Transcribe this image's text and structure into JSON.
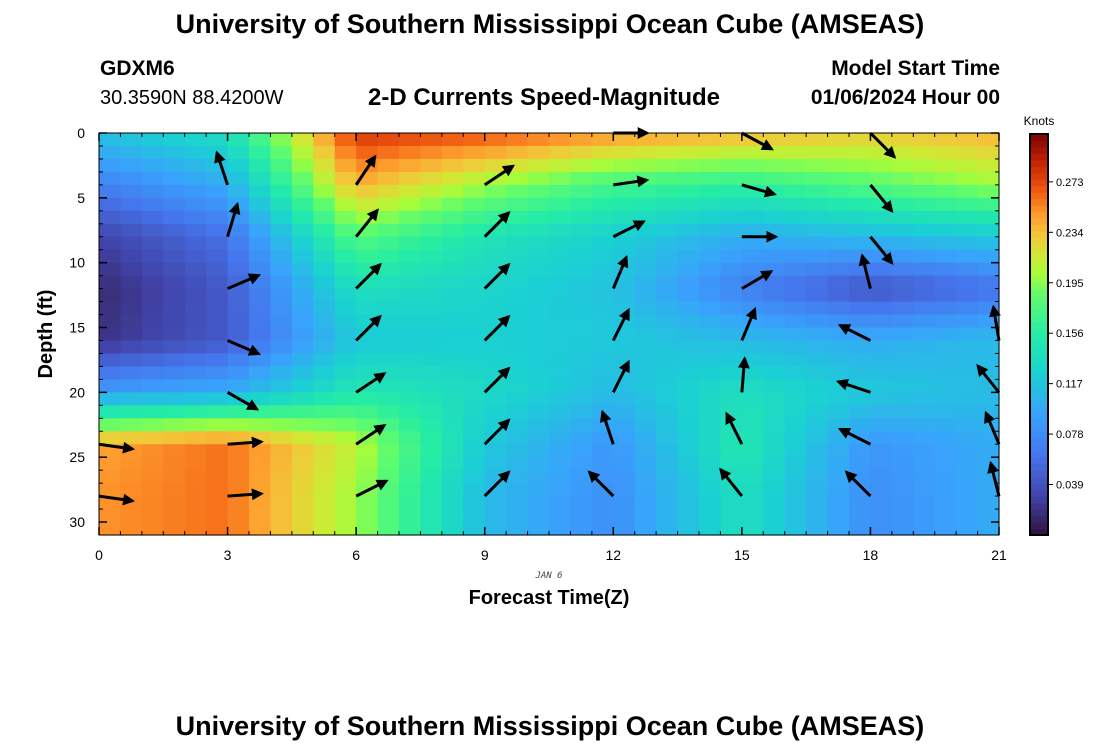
{
  "header": {
    "title": "University of Southern Mississippi Ocean Cube (AMSEAS)",
    "station": "GDXM6",
    "coords": "30.3590N  88.4200W",
    "subtitle": "2-D Currents Speed-Magnitude",
    "model_start_label": "Model Start Time",
    "model_start_value": "01/06/2024 Hour 00"
  },
  "footer": {
    "title": "University of Southern Mississippi Ocean Cube (AMSEAS)"
  },
  "chart_data": {
    "type": "heatmap",
    "title": "2-D Currents Speed-Magnitude",
    "xlabel": "Forecast Time(Z)",
    "ylabel": "Depth (ft)",
    "date_label": "JAN 6",
    "xlim": [
      0,
      21
    ],
    "ylim": [
      0,
      31
    ],
    "x_ticks": [
      0,
      3,
      6,
      9,
      12,
      15,
      18,
      21
    ],
    "y_ticks": [
      0,
      5,
      10,
      15,
      20,
      25,
      30
    ],
    "colorbar": {
      "label": "Knots",
      "ticks": [
        0.039,
        0.078,
        0.117,
        0.156,
        0.195,
        0.234,
        0.273
      ],
      "range": [
        0.0,
        0.31
      ]
    },
    "speed_grid": {
      "hours": [
        0,
        3,
        6,
        9,
        12,
        15,
        18,
        21
      ],
      "depths_ft": [
        0,
        4,
        8,
        12,
        16,
        20,
        24,
        28
      ],
      "values": [
        [
          0.115,
          0.14,
          0.28,
          0.27,
          0.25,
          0.24,
          0.23,
          0.24
        ],
        [
          0.07,
          0.1,
          0.24,
          0.2,
          0.17,
          0.16,
          0.18,
          0.2
        ],
        [
          0.03,
          0.06,
          0.18,
          0.145,
          0.125,
          0.1,
          0.11,
          0.12
        ],
        [
          0.015,
          0.045,
          0.14,
          0.13,
          0.115,
          0.07,
          0.04,
          0.06
        ],
        [
          0.02,
          0.045,
          0.12,
          0.125,
          0.12,
          0.11,
          0.1,
          0.11
        ],
        [
          0.09,
          0.1,
          0.15,
          0.135,
          0.11,
          0.14,
          0.12,
          0.11
        ],
        [
          0.245,
          0.26,
          0.21,
          0.12,
          0.085,
          0.15,
          0.085,
          0.1
        ],
        [
          0.25,
          0.26,
          0.2,
          0.11,
          0.08,
          0.14,
          0.08,
          0.1
        ]
      ]
    },
    "vectors": [
      {
        "t": 0,
        "d": 24,
        "u": 0.7,
        "v": -0.1
      },
      {
        "t": 0,
        "d": 28,
        "u": 0.7,
        "v": -0.1
      },
      {
        "t": 3,
        "d": 4,
        "u": -0.2,
        "v": 0.6
      },
      {
        "t": 3,
        "d": 8,
        "u": 0.15,
        "v": 0.5
      },
      {
        "t": 3,
        "d": 12,
        "u": 0.7,
        "v": 0.3
      },
      {
        "t": 3,
        "d": 16,
        "u": 0.7,
        "v": -0.3
      },
      {
        "t": 3,
        "d": 20,
        "u": 0.7,
        "v": -0.4
      },
      {
        "t": 3,
        "d": 24,
        "u": 0.7,
        "v": 0.05
      },
      {
        "t": 3,
        "d": 28,
        "u": 0.7,
        "v": 0.05
      },
      {
        "t": 6,
        "d": 4,
        "u": 0.4,
        "v": 0.6
      },
      {
        "t": 6,
        "d": 8,
        "u": 0.4,
        "v": 0.5
      },
      {
        "t": 6,
        "d": 12,
        "u": 0.5,
        "v": 0.5
      },
      {
        "t": 6,
        "d": 16,
        "u": 0.5,
        "v": 0.5
      },
      {
        "t": 6,
        "d": 20,
        "u": 0.6,
        "v": 0.4
      },
      {
        "t": 6,
        "d": 24,
        "u": 0.6,
        "v": 0.4
      },
      {
        "t": 6,
        "d": 28,
        "u": 0.6,
        "v": 0.3
      },
      {
        "t": 9,
        "d": 4,
        "u": 0.6,
        "v": 0.4
      },
      {
        "t": 9,
        "d": 8,
        "u": 0.5,
        "v": 0.5
      },
      {
        "t": 9,
        "d": 12,
        "u": 0.5,
        "v": 0.5
      },
      {
        "t": 9,
        "d": 16,
        "u": 0.5,
        "v": 0.5
      },
      {
        "t": 9,
        "d": 20,
        "u": 0.5,
        "v": 0.5
      },
      {
        "t": 9,
        "d": 24,
        "u": 0.5,
        "v": 0.5
      },
      {
        "t": 9,
        "d": 28,
        "u": 0.5,
        "v": 0.5
      },
      {
        "t": 12,
        "d": 0,
        "u": 0.7,
        "v": 0.0
      },
      {
        "t": 12,
        "d": 4,
        "u": 0.7,
        "v": 0.1
      },
      {
        "t": 12,
        "d": 8,
        "u": 0.6,
        "v": 0.3
      },
      {
        "t": 12,
        "d": 12,
        "u": 0.25,
        "v": 0.6
      },
      {
        "t": 12,
        "d": 16,
        "u": 0.3,
        "v": 0.6
      },
      {
        "t": 12,
        "d": 20,
        "u": 0.3,
        "v": 0.6
      },
      {
        "t": 12,
        "d": 24,
        "u": -0.2,
        "v": 0.6
      },
      {
        "t": 12,
        "d": 28,
        "u": -0.5,
        "v": 0.5
      },
      {
        "t": 15,
        "d": 0,
        "u": 0.65,
        "v": -0.35
      },
      {
        "t": 15,
        "d": 4,
        "u": 0.7,
        "v": -0.2
      },
      {
        "t": 15,
        "d": 8,
        "u": 0.7,
        "v": 0.0
      },
      {
        "t": 15,
        "d": 12,
        "u": 0.6,
        "v": 0.35
      },
      {
        "t": 15,
        "d": 16,
        "u": 0.25,
        "v": 0.6
      },
      {
        "t": 15,
        "d": 20,
        "u": 0.05,
        "v": 0.6
      },
      {
        "t": 15,
        "d": 24,
        "u": -0.3,
        "v": 0.6
      },
      {
        "t": 15,
        "d": 28,
        "u": -0.4,
        "v": 0.5
      },
      {
        "t": 18,
        "d": 0,
        "u": 0.5,
        "v": -0.5
      },
      {
        "t": 18,
        "d": 4,
        "u": 0.45,
        "v": -0.55
      },
      {
        "t": 18,
        "d": 8,
        "u": 0.45,
        "v": -0.55
      },
      {
        "t": 18,
        "d": 12,
        "u": -0.15,
        "v": 0.6
      },
      {
        "t": 18,
        "d": 16,
        "u": -0.6,
        "v": 0.3
      },
      {
        "t": 18,
        "d": 20,
        "u": -0.6,
        "v": 0.2
      },
      {
        "t": 18,
        "d": 24,
        "u": -0.6,
        "v": 0.3
      },
      {
        "t": 18,
        "d": 28,
        "u": -0.5,
        "v": 0.5
      },
      {
        "t": 21,
        "d": 16,
        "u": -0.1,
        "v": 0.6
      },
      {
        "t": 21,
        "d": 20,
        "u": -0.4,
        "v": 0.5
      },
      {
        "t": 21,
        "d": 24,
        "u": -0.25,
        "v": 0.6
      },
      {
        "t": 21,
        "d": 28,
        "u": -0.15,
        "v": 0.6
      }
    ]
  }
}
